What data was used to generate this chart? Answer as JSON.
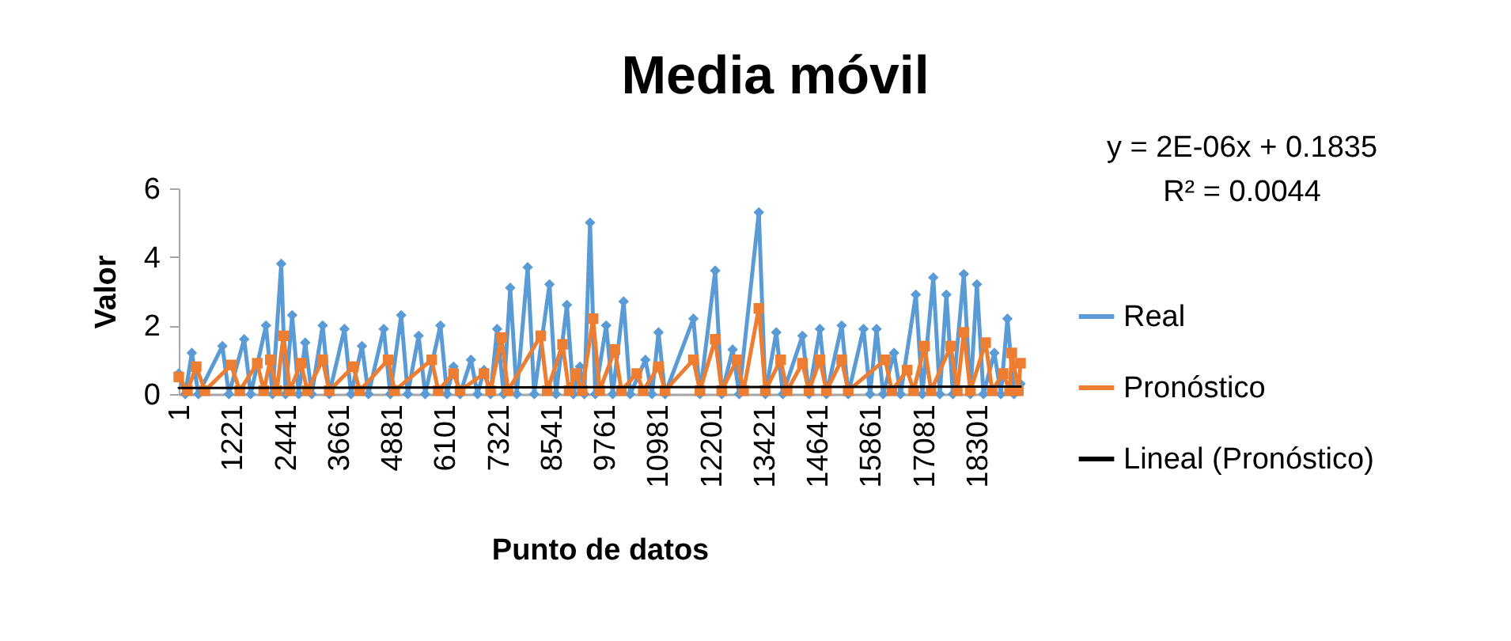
{
  "chart_data": {
    "type": "line",
    "title": "Media móvil",
    "xlabel": "Punto de datos",
    "ylabel": "Valor",
    "annotations": [
      "y = 2E-06x + 0.1835",
      "R² = 0.0044"
    ],
    "xlim": [
      1,
      19300
    ],
    "xticks": [
      1,
      1221,
      2441,
      3661,
      4881,
      6101,
      7321,
      8541,
      9761,
      10981,
      12201,
      13421,
      14641,
      15861,
      17081,
      18301
    ],
    "ylim": [
      0,
      6
    ],
    "yticks": [
      0,
      2,
      4,
      6
    ],
    "grid": false,
    "legend": "right",
    "series": [
      {
        "name": "Real",
        "color": "#5b9bd5",
        "marker": "diamond",
        "x": [
          1,
          150,
          300,
          450,
          1000,
          1150,
          1500,
          1650,
          2000,
          2150,
          2350,
          2450,
          2600,
          2750,
          2900,
          3050,
          3300,
          3450,
          3800,
          3950,
          4200,
          4350,
          4700,
          4850,
          5100,
          5250,
          5500,
          5650,
          6000,
          6150,
          6300,
          6450,
          6700,
          6850,
          7000,
          7150,
          7300,
          7450,
          7600,
          7750,
          8000,
          8150,
          8500,
          8650,
          8900,
          9050,
          9200,
          9300,
          9430,
          9550,
          9800,
          9950,
          10200,
          10350,
          10700,
          10850,
          11000,
          11150,
          11800,
          11950,
          12300,
          12450,
          12700,
          12850,
          13300,
          13450,
          13700,
          13850,
          14300,
          14450,
          14700,
          14850,
          15200,
          15350,
          15700,
          15850,
          16000,
          16150,
          16400,
          16550,
          16900,
          17050,
          17300,
          17450,
          17600,
          17750,
          18000,
          18150,
          18300,
          18450,
          18700,
          18850,
          19000,
          19150,
          19300
        ],
        "values": [
          0.6,
          0,
          1.2,
          0,
          1.4,
          0,
          1.6,
          0,
          2.0,
          0,
          3.8,
          0,
          2.3,
          0,
          1.5,
          0,
          2.0,
          0,
          1.9,
          0,
          1.4,
          0,
          1.9,
          0,
          2.3,
          0,
          1.7,
          0,
          2.0,
          0,
          0.8,
          0,
          1.0,
          0,
          0.7,
          0,
          1.9,
          0,
          3.1,
          0,
          3.7,
          0,
          3.2,
          0,
          2.6,
          0,
          0.8,
          0,
          5.0,
          0,
          2.0,
          0,
          2.7,
          0,
          1.0,
          0,
          1.8,
          0,
          2.2,
          0,
          3.6,
          0,
          1.3,
          0,
          5.3,
          0,
          1.8,
          0,
          1.7,
          0,
          1.9,
          0,
          2.0,
          0,
          1.9,
          0,
          1.9,
          0,
          1.2,
          0,
          2.9,
          0,
          3.4,
          0,
          2.9,
          0,
          3.5,
          0,
          3.2,
          0,
          1.2,
          0,
          2.2,
          0,
          0.3
        ]
      },
      {
        "name": "Pronóstico",
        "color": "#ed7d31",
        "marker": "square",
        "x": [
          1,
          200,
          400,
          600,
          1200,
          1400,
          1800,
          1950,
          2100,
          2250,
          2400,
          2550,
          2800,
          2950,
          3300,
          3450,
          4000,
          4150,
          4800,
          4950,
          5800,
          5950,
          6300,
          6450,
          7000,
          7150,
          7400,
          7550,
          8300,
          8450,
          8800,
          8950,
          9100,
          9250,
          9500,
          9650,
          10000,
          10150,
          10500,
          10650,
          11000,
          11150,
          11800,
          11950,
          12300,
          12450,
          12800,
          12950,
          13300,
          13450,
          13800,
          13950,
          14300,
          14450,
          14700,
          14850,
          15200,
          15350,
          16200,
          16350,
          16700,
          16850,
          17100,
          17250,
          17700,
          17850,
          18000,
          18150,
          18500,
          18650,
          18900,
          19050,
          19100,
          19250,
          19300
        ],
        "values": [
          0.5,
          0.1,
          0.8,
          0.1,
          0.85,
          0.1,
          0.9,
          0.1,
          1.0,
          0.1,
          1.7,
          0.1,
          0.9,
          0.1,
          1.0,
          0.1,
          0.8,
          0.1,
          1.0,
          0.1,
          1.0,
          0.1,
          0.6,
          0.1,
          0.6,
          0.1,
          1.65,
          0.1,
          1.7,
          0.1,
          1.45,
          0.1,
          0.6,
          0.1,
          2.2,
          0.1,
          1.3,
          0.1,
          0.6,
          0.1,
          0.8,
          0.1,
          1.0,
          0.1,
          1.6,
          0.1,
          1.0,
          0.1,
          2.5,
          0.1,
          1.0,
          0.1,
          0.9,
          0.1,
          1.0,
          0.1,
          1.0,
          0.1,
          1.0,
          0.1,
          0.7,
          0.1,
          1.4,
          0.1,
          1.4,
          0.1,
          1.8,
          0.1,
          1.5,
          0.1,
          0.6,
          0.1,
          1.2,
          0.1,
          0.9
        ]
      },
      {
        "name": "Lineal (Pronóstico)",
        "type": "line",
        "color": "#000000",
        "marker": "none",
        "x": [
          1,
          19300
        ],
        "values": [
          0.18,
          0.22
        ]
      }
    ]
  }
}
